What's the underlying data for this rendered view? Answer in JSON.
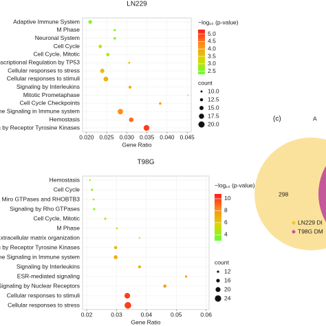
{
  "chart_data": [
    {
      "type": "dot",
      "title": "LN229",
      "x_label": "Gene Ratio",
      "categories": [
        "Adaptive Immune System",
        "M Phase",
        "Neuronal System",
        "Cell Cycle",
        "Cell Cycle, Mitotic",
        "nscriptional Regulation by TP53",
        "Cellular responses to stress",
        "Cellular responses to stimuli",
        "Signaling by Interleukins",
        "Mitotic Prometaphase",
        "Cell Cycle Checkpoints",
        "ne Signaling in Immune system",
        "Hemostasis",
        "g by Receptor Tyrosine Kinases"
      ],
      "category_colors": [
        "#1a1a1a",
        "#e8141c",
        "#1a1a1a",
        "#e8141c",
        "#e8141c",
        "#1a1a1a",
        "#1a1a1a",
        "#1a1a1a",
        "#1a1a1a",
        "#e8141c",
        "#e8141c",
        "#1a1a1a",
        "#1a1a1a",
        "#1a1a1a"
      ],
      "values": [
        0.0209,
        0.027,
        0.027,
        0.0234,
        0.0253,
        0.0306,
        0.0239,
        0.0248,
        0.0308,
        0.0452,
        0.0383,
        0.0284,
        0.0311,
        0.0349
      ],
      "colors": [
        2.6,
        2.7,
        2.6,
        3.0,
        2.9,
        3.5,
        3.6,
        3.8,
        3.8,
        3.5,
        4.0,
        4.3,
        4.6,
        5.0
      ],
      "counts": [
        14,
        10.5,
        11,
        13,
        13,
        10,
        15.5,
        16.5,
        12,
        8,
        11,
        18,
        16,
        19
      ],
      "xlim": [
        0.019,
        0.046
      ],
      "xticks": [
        {
          "value": 0.02,
          "label": "0.020"
        },
        0.025,
        {
          "value": 0.03,
          "label": "0.030"
        },
        0.035,
        {
          "value": 0.04,
          "label": "0.040"
        },
        0.045
      ],
      "color_title": "−log₁₀ (p-value)",
      "colorlim": [
        2.3,
        5.3
      ],
      "color_ticks": [
        2.5,
        {
          "value": 3,
          "label": "3.0"
        },
        3.5,
        {
          "value": 4,
          "label": "4.0"
        },
        4.5,
        {
          "value": 5,
          "label": "5.0"
        }
      ],
      "colormap": [
        "#66ff33",
        "#d8d800",
        "#ff8c1a",
        "#ff1a1a"
      ],
      "size_title": "count",
      "size_ticks": [
        {
          "value": 10,
          "label": "10.0"
        },
        12.5,
        {
          "value": 15,
          "label": "15.0"
        },
        17.5,
        {
          "value": 20,
          "label": "20.0"
        }
      ],
      "grid": true
    },
    {
      "type": "dot",
      "title": "T98G",
      "x_label": "Gene Ratio",
      "categories": [
        "Hemostasis",
        "Cell Cycle",
        "_ Miro GTPases and RHOBTB3",
        "Signaling by Rho GTPases",
        "Cell Cycle, Mitotic",
        "M Phase",
        "Extracellular matrix organization",
        "ng by Receptor Tyrosine Kinases",
        "me Signaling in Immune system",
        "Signaling by Interleukins",
        "ESR-mediated signaling",
        "Signaling by Nuclear Receptors",
        "Cellular responses to stimuli",
        "Cellular responses to stress"
      ],
      "category_colors": [
        "#1a1a1a",
        "#e8141c",
        "#1a1a1a",
        "#1a1a1a",
        "#e8141c",
        "#e8141c",
        "#1a1a1a",
        "#1a1a1a",
        "#1a1a1a",
        "#1a1a1a",
        "#1a1a1a",
        "#1a1a1a",
        "#1a1a1a",
        "#1a1a1a"
      ],
      "values": [
        0.0211,
        0.0218,
        0.0223,
        0.0225,
        0.0262,
        0.0301,
        0.0377,
        0.0297,
        0.0297,
        0.0377,
        0.0533,
        0.0462,
        0.0336,
        0.0338
      ],
      "colors": [
        3.5,
        3.8,
        4,
        4,
        4.5,
        5,
        6,
        6.5,
        7,
        7,
        7.5,
        7.5,
        10,
        10
      ],
      "counts": [
        10.5,
        12,
        11,
        12,
        12,
        11,
        10,
        15,
        17,
        14,
        12,
        15,
        22,
        25
      ],
      "xlim": [
        0.0186,
        0.061
      ],
      "xticks": [
        {
          "value": 0.02,
          "label": "0.02"
        },
        {
          "value": 0.03,
          "label": "0.03"
        },
        {
          "value": 0.04,
          "label": "0.04"
        },
        {
          "value": 0.05,
          "label": "0.05"
        },
        {
          "value": 0.06,
          "label": "0.06"
        }
      ],
      "color_title": "−log₁₀ (p-value)",
      "colorlim": [
        3,
        10.8
      ],
      "color_ticks": [
        4,
        6,
        8,
        10
      ],
      "colormap": [
        "#66ff33",
        "#d8d800",
        "#ff8c1a",
        "#ff1a1a"
      ],
      "size_title": "count",
      "size_ticks": [
        12,
        16,
        20,
        24
      ],
      "grid": true
    }
  ],
  "venn": {
    "panel_label": "(c)",
    "title": "A",
    "count": "298",
    "legend": [
      "LN229 DI",
      "T98G DM"
    ],
    "colors": [
      "#fbe29c",
      "#c4589a"
    ]
  }
}
